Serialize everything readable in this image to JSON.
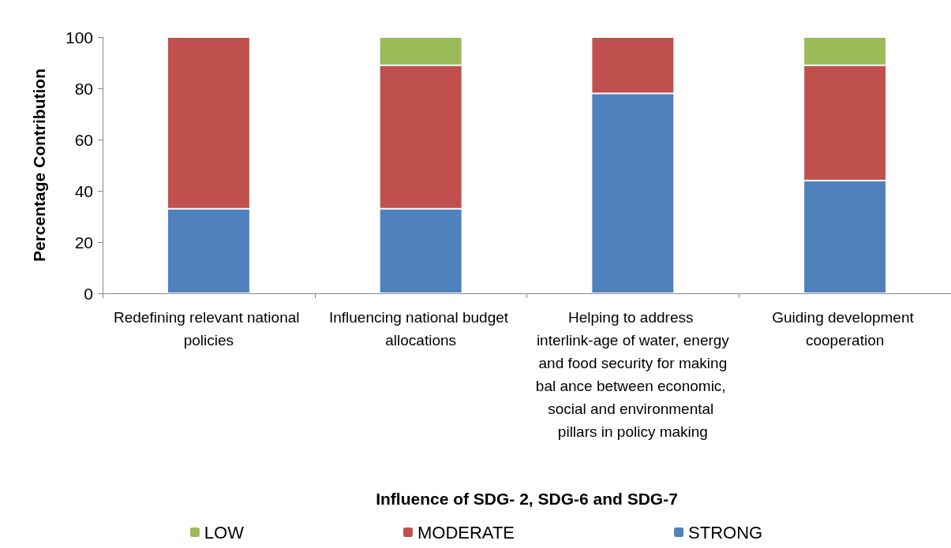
{
  "chart_data": {
    "type": "bar",
    "stacked": true,
    "xlabel": "Influence of SDG- 2, SDG-6 and SDG-7",
    "ylabel": "Percentage Contribution",
    "categories": [
      "Redefining relevant national policies",
      "Influencing national budget allocations",
      "Helping to address interlink-age of water, energy and food security for making bal ance between economic, social and environmental pillars in policy making",
      "Guiding development cooperation"
    ],
    "series": [
      {
        "name": "STRONG",
        "color": "#4f81bd",
        "values": [
          33,
          33,
          78,
          44
        ]
      },
      {
        "name": "MODERATE",
        "color": "#c0504d",
        "values": [
          67,
          56,
          22,
          45
        ]
      },
      {
        "name": "LOW",
        "color": "#9bbb59",
        "values": [
          null,
          11,
          null,
          11
        ]
      }
    ],
    "ylim": [
      0,
      100
    ],
    "yticks": [
      0,
      20,
      40,
      60,
      80,
      100
    ],
    "grid": false,
    "legend": "bottom"
  }
}
